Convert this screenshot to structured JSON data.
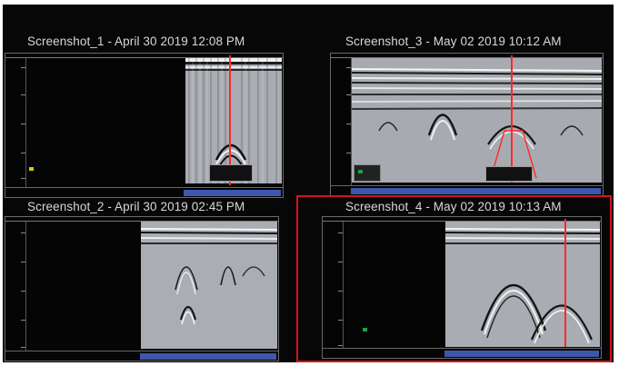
{
  "screens": [
    {
      "title": "Screenshot_1 - April 30 2019 12:08 PM"
    },
    {
      "title": "Screenshot_3 - May 02 2019 10:12 AM"
    },
    {
      "title": "Screenshot_2 - April 30 2019 02:45 PM"
    },
    {
      "title": "Screenshot_4 - May 02 2019 10:13 AM"
    }
  ],
  "colors": {
    "cursor": "#ff2a2a",
    "highlight": "#d2141c",
    "scanbar": "#3f56ae"
  },
  "icons": [
    "gps-icon",
    "position-cursor-icon"
  ]
}
